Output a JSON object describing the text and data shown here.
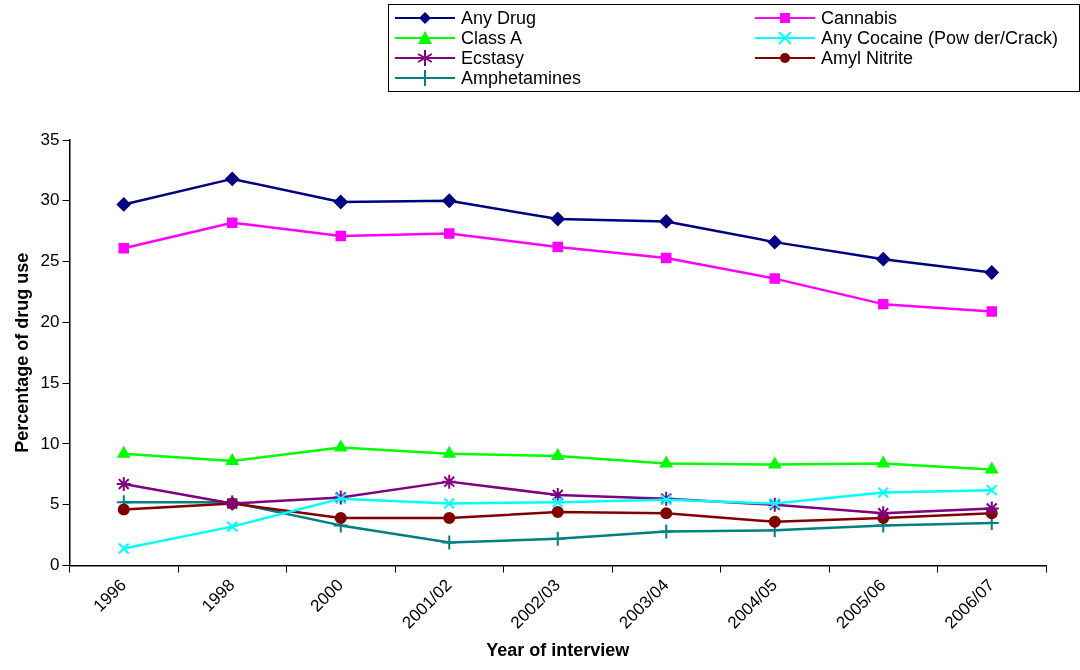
{
  "chart_data": {
    "type": "line",
    "xlabel": "Year of interview",
    "ylabel": "Percentage of drug use",
    "categories": [
      "1996",
      "1998",
      "2000",
      "2001/02",
      "2002/03",
      "2003/04",
      "2004/05",
      "2005/06",
      "2006/07"
    ],
    "ylim": [
      0,
      35
    ],
    "yticks": [
      0,
      5,
      10,
      15,
      20,
      25,
      30,
      35
    ],
    "grid": false,
    "legend": "top right",
    "line_style": "solid",
    "series": [
      {
        "name": "Any Drug",
        "color": "#000080",
        "marker": "diamond",
        "values": [
          29.7,
          31.8,
          29.9,
          30.0,
          28.5,
          28.3,
          26.6,
          25.2,
          24.1
        ]
      },
      {
        "name": "Cannabis",
        "color": "#ff00ff",
        "marker": "square",
        "values": [
          26.1,
          28.2,
          27.1,
          27.3,
          26.2,
          25.3,
          23.6,
          21.5,
          20.9
        ]
      },
      {
        "name": "Class A",
        "color": "#00ff00",
        "marker": "triangle",
        "values": [
          9.2,
          8.6,
          9.7,
          9.2,
          9.0,
          8.4,
          8.3,
          8.4,
          7.9
        ]
      },
      {
        "name": "Any Cocaine (Pow der/Crack)",
        "color": "#00ffff",
        "marker": "x",
        "values": [
          1.4,
          3.2,
          5.5,
          5.1,
          5.2,
          5.4,
          5.1,
          6.0,
          6.2
        ]
      },
      {
        "name": "Ecstasy",
        "color": "#800080",
        "marker": "cross",
        "values": [
          6.7,
          5.1,
          5.6,
          6.9,
          5.8,
          5.5,
          5.0,
          4.3,
          4.7
        ]
      },
      {
        "name": "Amyl Nitrite",
        "color": "#800000",
        "marker": "circle",
        "values": [
          4.6,
          5.1,
          3.9,
          3.9,
          4.4,
          4.3,
          3.6,
          3.9,
          4.3
        ]
      },
      {
        "name": "Amphetamines",
        "color": "#008080",
        "marker": "plus",
        "values": [
          5.2,
          5.2,
          3.3,
          1.9,
          2.2,
          2.8,
          2.9,
          3.3,
          3.5
        ]
      }
    ]
  }
}
